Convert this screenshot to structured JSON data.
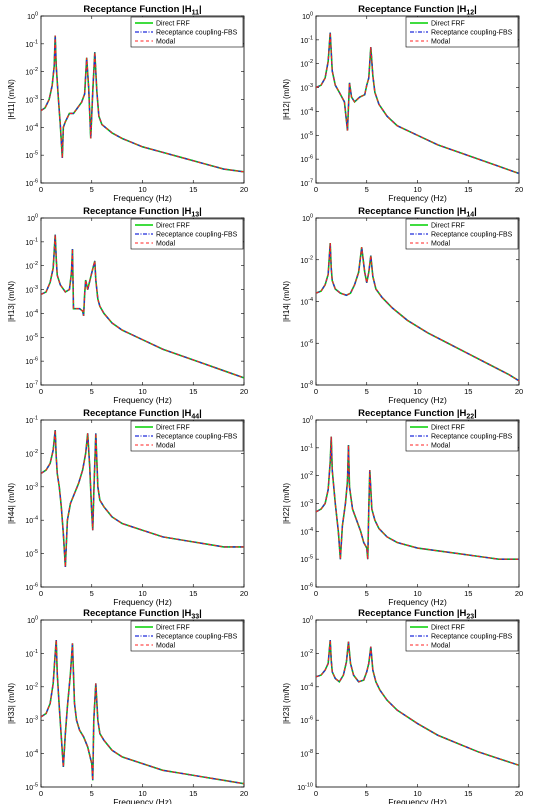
{
  "figure": {
    "legend_labels": [
      "Direct FRF",
      "Receptance coupling-FBS",
      "Modal"
    ],
    "colors": {
      "direct": "#00d000",
      "fbs": "#1f2bd9",
      "modal": "#ff2020"
    }
  },
  "chart_data": [
    {
      "type": "line",
      "title": "Receptance Function |H11|",
      "title_main": "Receptance Function  |H",
      "title_sub": "11",
      "title_close": "|",
      "ylabel": "|H11| (m/N)",
      "xlabel": "Frequency (Hz)",
      "xlim": [
        0,
        20
      ],
      "ylog": true,
      "ylim": [
        -6,
        0
      ],
      "xticks": [
        "0",
        "5",
        "10",
        "15",
        "20"
      ],
      "yticks": [
        "10^-6",
        "10^-5",
        "10^-4",
        "10^-3",
        "10^-2",
        "10^-1",
        "10^0"
      ],
      "legend_position": "top-right",
      "series_names": [
        "Direct FRF",
        "Receptance coupling-FBS",
        "Modal"
      ],
      "x": [
        0,
        0.4,
        0.8,
        1.1,
        1.3,
        1.4,
        1.5,
        1.7,
        1.9,
        2.1,
        2.2,
        2.4,
        2.8,
        3.2,
        3.6,
        4.0,
        4.3,
        4.5,
        4.7,
        4.9,
        5.1,
        5.3,
        5.5,
        5.7,
        6.0,
        7.0,
        8.0,
        10.0,
        12.0,
        14.0,
        16.0,
        18.0,
        20.0
      ],
      "y": [
        -3.4,
        -3.3,
        -3.0,
        -2.5,
        -1.8,
        -0.7,
        -1.8,
        -2.9,
        -3.9,
        -5.1,
        -4.0,
        -3.8,
        -3.5,
        -3.5,
        -3.3,
        -3.1,
        -2.8,
        -1.5,
        -2.6,
        -4.4,
        -2.7,
        -1.3,
        -2.7,
        -3.6,
        -3.9,
        -4.2,
        -4.4,
        -4.7,
        -4.9,
        -5.1,
        -5.3,
        -5.5,
        -5.6
      ]
    },
    {
      "type": "line",
      "title": "Receptance Function |H12|",
      "title_main": "Receptance Function  |H",
      "title_sub": "12",
      "title_close": "|",
      "ylabel": "|H12| (m/N)",
      "xlabel": "Frequency (Hz)",
      "xlim": [
        0,
        20
      ],
      "ylog": true,
      "ylim": [
        -7,
        0
      ],
      "xticks": [
        "0",
        "5",
        "10",
        "15",
        "20"
      ],
      "yticks": [
        "10^-7",
        "10^-6",
        "10^-5",
        "10^-4",
        "10^-3",
        "10^-2",
        "10^-1",
        "10^0"
      ],
      "legend_position": "top-right",
      "series_names": [
        "Direct FRF",
        "Receptance coupling-FBS",
        "Modal"
      ],
      "x": [
        0,
        0.5,
        0.9,
        1.2,
        1.4,
        1.5,
        1.6,
        1.9,
        2.3,
        2.8,
        3.1,
        3.3,
        3.5,
        3.8,
        4.3,
        4.8,
        5.0,
        5.2,
        5.4,
        5.6,
        5.8,
        6.2,
        7.0,
        8.0,
        10.0,
        12.0,
        14.0,
        16.0,
        18.0,
        20.0
      ],
      "y": [
        -3.0,
        -2.9,
        -2.6,
        -1.9,
        -0.7,
        -1.5,
        -2.3,
        -2.9,
        -3.2,
        -3.6,
        -4.8,
        -2.8,
        -3.4,
        -3.6,
        -3.4,
        -3.3,
        -2.9,
        -2.6,
        -1.3,
        -2.5,
        -3.2,
        -3.7,
        -4.2,
        -4.6,
        -5.0,
        -5.4,
        -5.7,
        -6.0,
        -6.3,
        -6.6
      ]
    },
    {
      "type": "line",
      "title": "Receptance Function |H13|",
      "title_main": "Receptance Function  |H",
      "title_sub": "13",
      "title_close": "|",
      "ylabel": "|H13| (m/N)",
      "xlabel": "Frequency (Hz)",
      "xlim": [
        0,
        20
      ],
      "ylog": true,
      "ylim": [
        -7,
        0
      ],
      "xticks": [
        "0",
        "5",
        "10",
        "15",
        "20"
      ],
      "yticks": [
        "10^-7",
        "10^-6",
        "10^-5",
        "10^-4",
        "10^-3",
        "10^-2",
        "10^-1",
        "10^0"
      ],
      "legend_position": "top-right",
      "series_names": [
        "Direct FRF",
        "Receptance coupling-FBS",
        "Modal"
      ],
      "x": [
        0,
        0.5,
        0.9,
        1.2,
        1.4,
        1.5,
        1.6,
        1.9,
        2.4,
        2.8,
        3.0,
        3.1,
        3.2,
        3.4,
        3.8,
        4.1,
        4.2,
        4.3,
        4.4,
        4.6,
        5.0,
        5.3,
        5.4,
        5.6,
        5.8,
        6.2,
        7.0,
        8.0,
        10.0,
        12.0,
        14.0,
        16.0,
        18.0,
        20.0
      ],
      "y": [
        -3.2,
        -3.1,
        -2.7,
        -2.1,
        -0.7,
        -1.7,
        -2.4,
        -2.8,
        -3.1,
        -3.0,
        -2.3,
        -1.3,
        -3.8,
        -3.8,
        -3.8,
        -3.9,
        -4.1,
        -3.2,
        -2.6,
        -3.0,
        -2.3,
        -1.8,
        -2.6,
        -3.4,
        -3.7,
        -4.0,
        -4.4,
        -4.7,
        -5.1,
        -5.5,
        -5.8,
        -6.1,
        -6.4,
        -6.7
      ]
    },
    {
      "type": "line",
      "title": "Receptance Function |H14|",
      "title_main": "Receptance Function  |H",
      "title_sub": "14",
      "title_close": "|",
      "ylabel": "|H14| (m/N)",
      "xlabel": "Frequency (Hz)",
      "xlim": [
        0,
        20
      ],
      "ylog": true,
      "ylim": [
        -8,
        0
      ],
      "xticks": [
        "0",
        "5",
        "10",
        "15",
        "20"
      ],
      "yticks": [
        "10^-8",
        "10^-6",
        "10^-4",
        "10^-2",
        "10^0"
      ],
      "legend_position": "top-right",
      "series_names": [
        "Direct FRF",
        "Receptance coupling-FBS",
        "Modal"
      ],
      "x": [
        0,
        0.5,
        0.9,
        1.2,
        1.4,
        1.5,
        1.6,
        1.9,
        2.4,
        3.0,
        3.4,
        3.8,
        4.2,
        4.5,
        4.8,
        5.0,
        5.2,
        5.4,
        5.6,
        5.9,
        6.5,
        7.5,
        9.0,
        11.0,
        13.0,
        15.0,
        17.0,
        19.0,
        20.0
      ],
      "y": [
        -3.6,
        -3.5,
        -3.2,
        -2.7,
        -1.2,
        -2.4,
        -3.0,
        -3.4,
        -3.6,
        -3.7,
        -3.6,
        -3.2,
        -2.6,
        -1.4,
        -2.6,
        -3.1,
        -2.6,
        -1.8,
        -2.8,
        -3.4,
        -3.8,
        -4.3,
        -4.9,
        -5.5,
        -6.0,
        -6.5,
        -7.0,
        -7.5,
        -7.8
      ]
    },
    {
      "type": "line",
      "title": "Receptance Function |H44|",
      "title_main": "Receptance Function  |H",
      "title_sub": "44",
      "title_close": "|",
      "ylabel": "|H44| (m/N)",
      "xlabel": "Frequency (Hz)",
      "xlim": [
        0,
        20
      ],
      "ylog": true,
      "ylim": [
        -6,
        -1
      ],
      "xticks": [
        "0",
        "5",
        "10",
        "15",
        "20"
      ],
      "yticks": [
        "10^-6",
        "10^-5",
        "10^-4",
        "10^-3",
        "10^-2",
        "10^-1"
      ],
      "legend_position": "top-right",
      "series_names": [
        "Direct FRF",
        "Receptance coupling-FBS",
        "Modal"
      ],
      "x": [
        0,
        0.5,
        0.9,
        1.2,
        1.4,
        1.5,
        1.6,
        1.8,
        2.0,
        2.2,
        2.4,
        2.6,
        2.9,
        3.3,
        3.7,
        4.1,
        4.4,
        4.6,
        4.8,
        5.0,
        5.1,
        5.2,
        5.4,
        5.6,
        5.8,
        6.2,
        7.0,
        8.0,
        10.0,
        12.0,
        14.0,
        16.0,
        18.0,
        20.0
      ],
      "y": [
        -2.6,
        -2.5,
        -2.3,
        -1.9,
        -1.3,
        -2.1,
        -2.6,
        -3.0,
        -3.6,
        -4.4,
        -5.4,
        -4.0,
        -3.5,
        -3.2,
        -2.9,
        -2.5,
        -2.0,
        -1.4,
        -2.4,
        -3.8,
        -4.3,
        -3.2,
        -1.4,
        -3.0,
        -3.4,
        -3.6,
        -3.9,
        -4.1,
        -4.3,
        -4.5,
        -4.6,
        -4.7,
        -4.8,
        -4.8
      ]
    },
    {
      "type": "line",
      "title": "Receptance Function |H22|",
      "title_main": "Receptance Function  |H",
      "title_sub": "22",
      "title_close": "|",
      "ylabel": "|H22| (m/N)",
      "xlabel": "Frequency (Hz)",
      "xlim": [
        0,
        20
      ],
      "ylog": true,
      "ylim": [
        -6,
        0
      ],
      "xticks": [
        "0",
        "5",
        "10",
        "15",
        "20"
      ],
      "yticks": [
        "10^-6",
        "10^-5",
        "10^-4",
        "10^-3",
        "10^-2",
        "10^-1",
        "10^0"
      ],
      "legend_position": "top-right",
      "series_names": [
        "Direct FRF",
        "Receptance coupling-FBS",
        "Modal"
      ],
      "x": [
        0,
        0.5,
        0.9,
        1.2,
        1.4,
        1.5,
        1.6,
        1.9,
        2.2,
        2.4,
        2.6,
        2.9,
        3.1,
        3.2,
        3.3,
        3.6,
        4.0,
        4.4,
        4.7,
        5.0,
        5.1,
        5.2,
        5.3,
        5.5,
        5.8,
        6.2,
        7.0,
        8.0,
        10.0,
        12.0,
        14.0,
        16.0,
        18.0,
        20.0
      ],
      "y": [
        -3.3,
        -3.2,
        -3.0,
        -2.5,
        -1.5,
        -0.6,
        -1.8,
        -3.0,
        -4.0,
        -5.0,
        -3.8,
        -3.0,
        -2.2,
        -0.9,
        -2.4,
        -3.2,
        -3.6,
        -4.0,
        -4.4,
        -4.6,
        -5.0,
        -3.2,
        -1.8,
        -3.2,
        -3.6,
        -3.9,
        -4.2,
        -4.4,
        -4.6,
        -4.7,
        -4.8,
        -4.9,
        -5.0,
        -5.0
      ]
    },
    {
      "type": "line",
      "title": "Receptance Function |H33|",
      "title_main": "Receptance Function  |H",
      "title_sub": "33",
      "title_close": "|",
      "ylabel": "|H33| (m/N)",
      "xlabel": "Frequency (Hz)",
      "xlim": [
        0,
        20
      ],
      "ylog": true,
      "ylim": [
        -5,
        0
      ],
      "xticks": [
        "0",
        "5",
        "10",
        "15",
        "20"
      ],
      "yticks": [
        "10^-5",
        "10^-4",
        "10^-3",
        "10^-2",
        "10^-1",
        "10^0"
      ],
      "legend_position": "top-right",
      "series_names": [
        "Direct FRF",
        "Receptance coupling-FBS",
        "Modal"
      ],
      "x": [
        0,
        0.5,
        0.9,
        1.2,
        1.4,
        1.5,
        1.6,
        1.8,
        2.0,
        2.2,
        2.4,
        2.6,
        2.9,
        3.1,
        3.2,
        3.3,
        3.5,
        3.8,
        4.2,
        4.6,
        5.0,
        5.1,
        5.2,
        5.4,
        5.6,
        5.8,
        6.2,
        7.0,
        8.0,
        10.0,
        12.0,
        14.0,
        16.0,
        18.0,
        20.0
      ],
      "y": [
        -2.9,
        -2.8,
        -2.5,
        -1.9,
        -1.0,
        -0.6,
        -1.6,
        -2.6,
        -3.5,
        -4.4,
        -3.4,
        -2.6,
        -1.6,
        -0.7,
        -1.6,
        -2.5,
        -3.0,
        -3.3,
        -3.5,
        -3.8,
        -4.3,
        -4.8,
        -3.0,
        -1.9,
        -3.0,
        -3.4,
        -3.6,
        -3.9,
        -4.1,
        -4.3,
        -4.5,
        -4.6,
        -4.7,
        -4.8,
        -4.9
      ]
    },
    {
      "type": "line",
      "title": "Receptance Function |H23|",
      "title_main": "Receptance Function  |H",
      "title_sub": "23",
      "title_close": "|",
      "ylabel": "|H23| (m/N)",
      "xlabel": "Frequency (Hz)",
      "xlim": [
        0,
        20
      ],
      "ylog": true,
      "ylim": [
        -10,
        0
      ],
      "xticks": [
        "0",
        "5",
        "10",
        "15",
        "20"
      ],
      "yticks": [
        "10^-10",
        "10^-8",
        "10^-6",
        "10^-4",
        "10^-2",
        "10^0"
      ],
      "legend_position": "top-right",
      "series_names": [
        "Direct FRF",
        "Receptance coupling-FBS",
        "Modal"
      ],
      "x": [
        0,
        0.5,
        0.9,
        1.2,
        1.4,
        1.5,
        1.6,
        1.9,
        2.3,
        2.7,
        3.0,
        3.2,
        3.4,
        3.7,
        4.2,
        4.7,
        5.0,
        5.2,
        5.4,
        5.6,
        5.9,
        6.3,
        7.0,
        8.0,
        10.0,
        12.0,
        14.0,
        16.0,
        18.0,
        20.0
      ],
      "y": [
        -3.4,
        -3.3,
        -3.0,
        -2.6,
        -1.2,
        -2.4,
        -3.1,
        -3.5,
        -3.7,
        -3.3,
        -2.5,
        -1.3,
        -2.6,
        -3.3,
        -3.7,
        -3.6,
        -3.1,
        -2.6,
        -1.6,
        -3.0,
        -3.7,
        -4.2,
        -4.8,
        -5.4,
        -6.2,
        -6.9,
        -7.4,
        -7.9,
        -8.3,
        -8.7
      ]
    }
  ]
}
